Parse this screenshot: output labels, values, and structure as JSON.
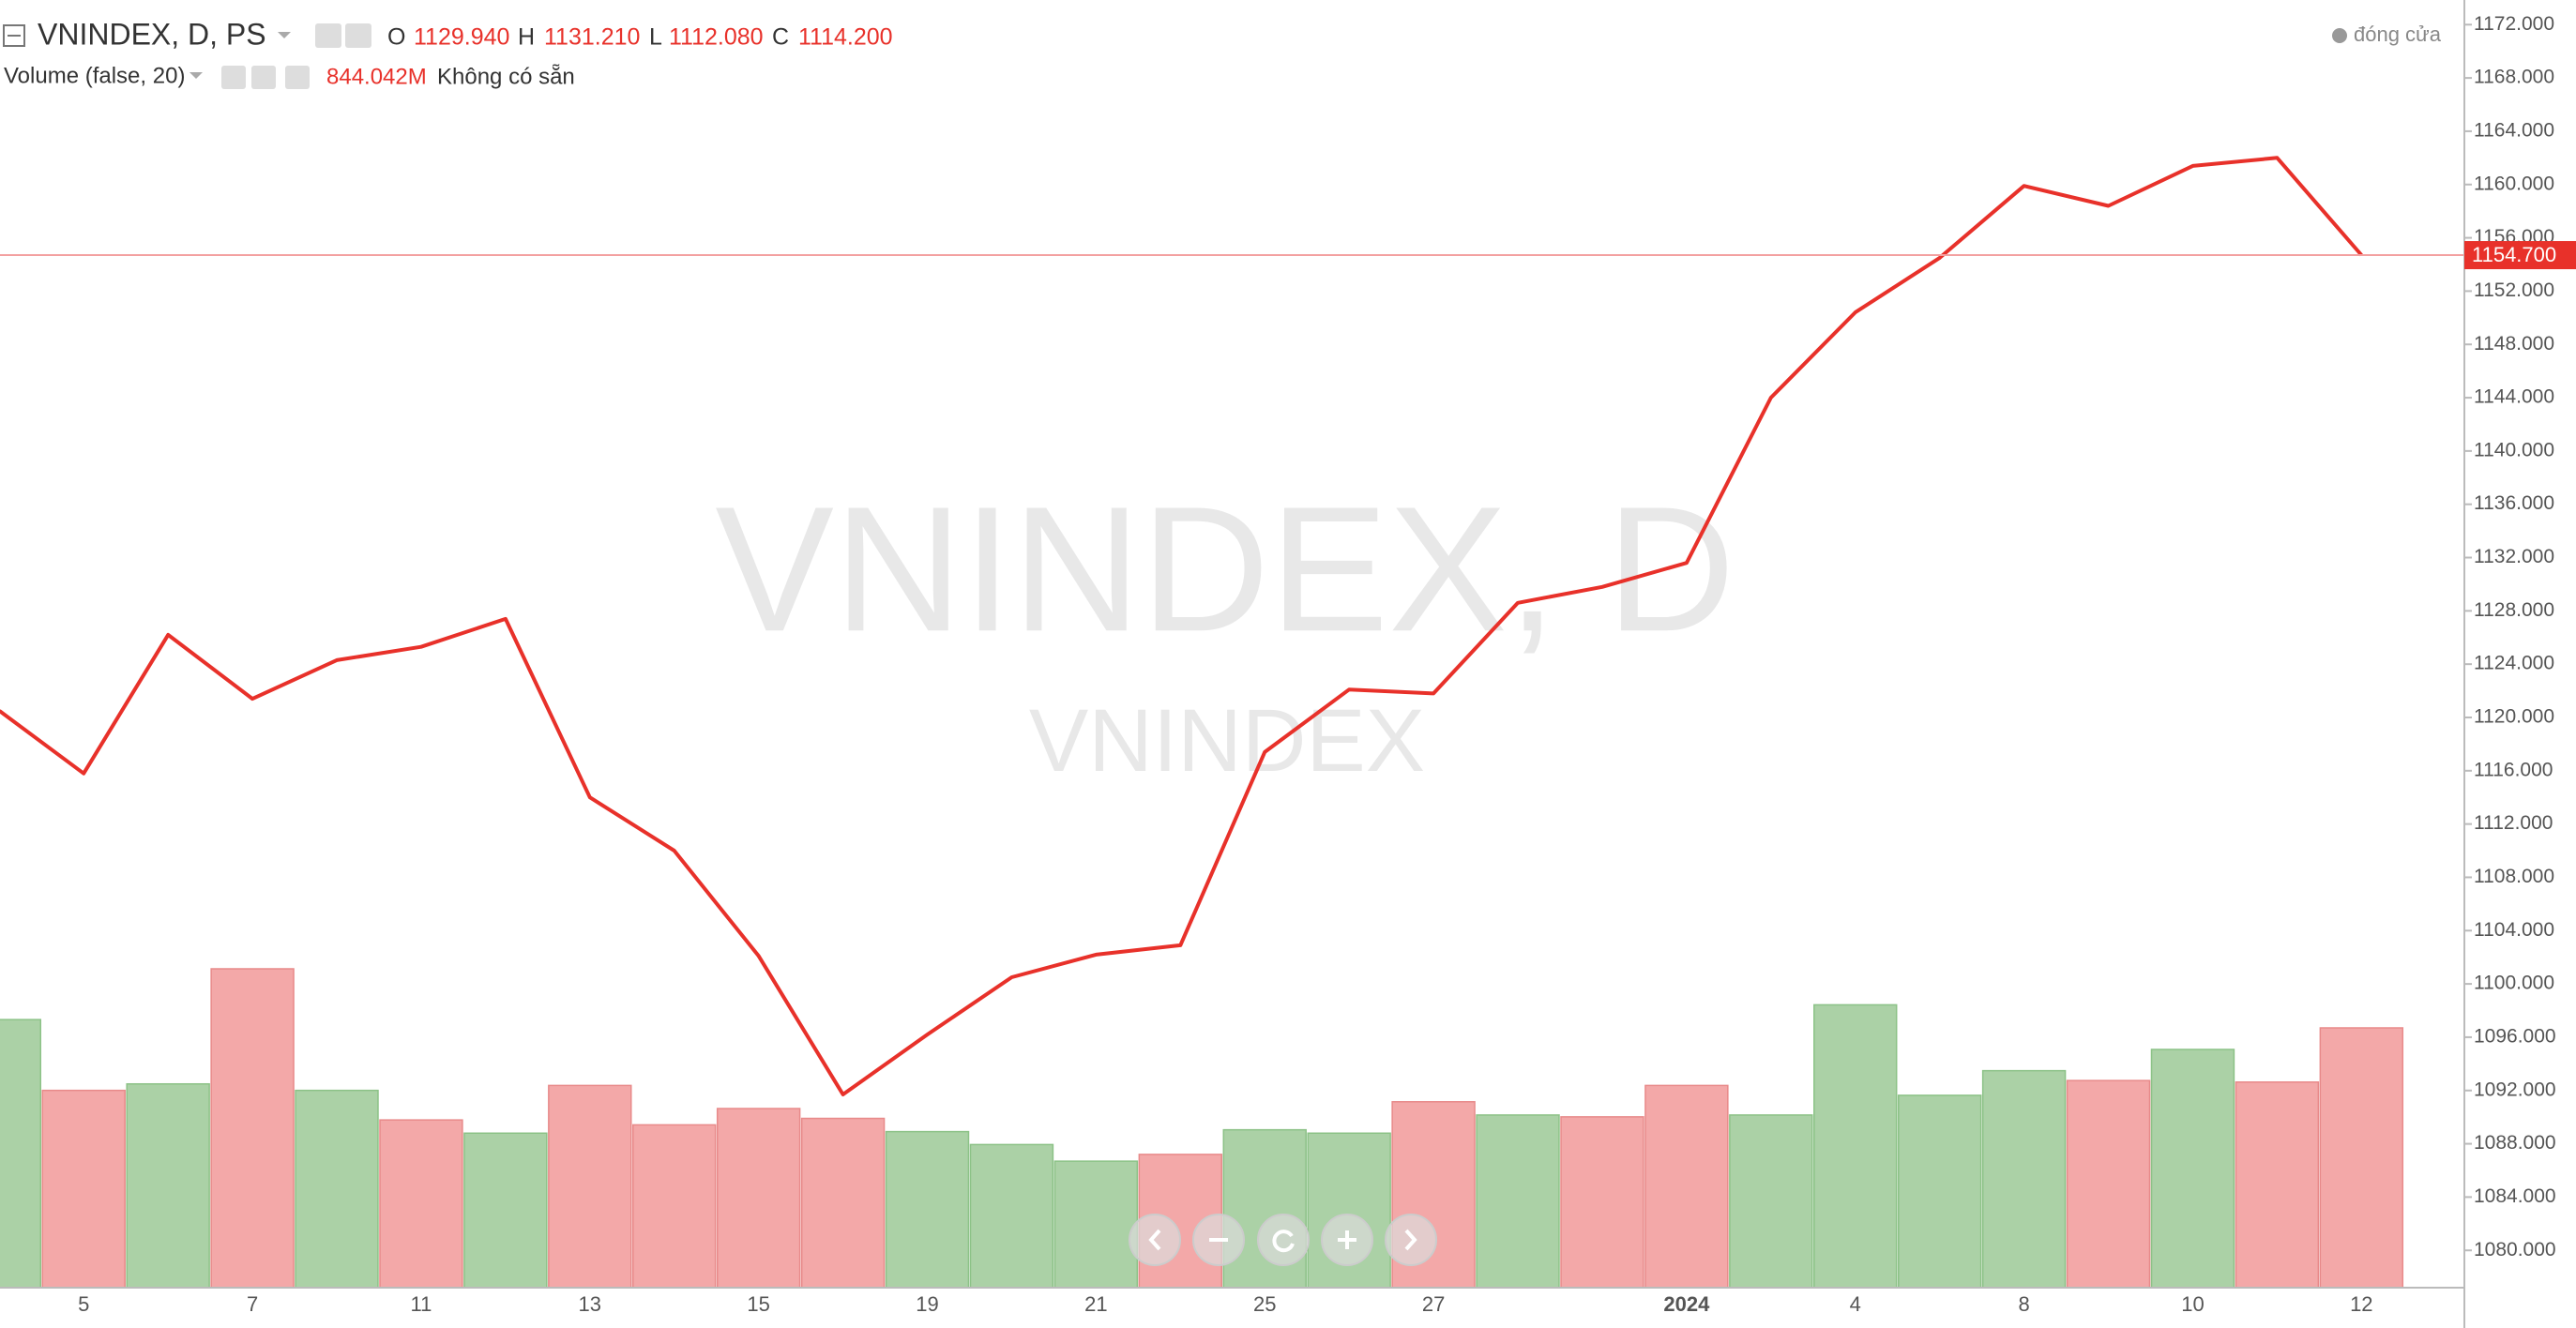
{
  "chart_data": {
    "type": "line",
    "title": "VNINDEX, D, PS",
    "watermark": "VNINDEX, D",
    "watermark_sub": "VNINDEX",
    "ohlc": [
      {
        "name": "O",
        "value": {
          "value": 1129.94,
          "label": "1129.940"
        }
      },
      {
        "name": "H",
        "value": {
          "value": 1131.21,
          "label": "1131.210"
        }
      },
      {
        "name": "L",
        "value": {
          "value": 1112.08,
          "label": "1112.080"
        }
      },
      {
        "name": "C",
        "value": {
          "value": 1114.2,
          "label": "1114.200"
        }
      }
    ],
    "volume_title": "Volume (false, 20)",
    "volume_last": {
      "value": 844.042,
      "label": "844.042M"
    },
    "volume_note": "Không có sẵn",
    "status": "đóng cửa",
    "categories": [
      null,
      "5",
      null,
      "7",
      null,
      "11",
      null,
      "13",
      null,
      "15",
      null,
      "19",
      null,
      "21",
      null,
      "25",
      null,
      "27",
      null,
      null,
      "2024",
      null,
      "4",
      null,
      "8",
      null,
      "10",
      null,
      "12"
    ],
    "series": [
      {
        "name": "VNINDEX",
        "color": "#e8312a",
        "values": [
          1120.5,
          1115.8,
          1126.2,
          1121.4,
          1124.3,
          1125.3,
          1127.4,
          1114.0,
          1110.0,
          1102.1,
          1091.7,
          1096.2,
          1100.5,
          1102.2,
          1102.9,
          1117.4,
          1122.1,
          1121.8,
          1128.6,
          1129.8,
          1131.6,
          1144.0,
          1150.4,
          1154.5,
          1159.9,
          1158.4,
          1161.4,
          1162.0,
          1154.7
        ]
      },
      {
        "name": "Volume",
        "type": "bar",
        "values": [
          871,
          641,
          662,
          1036,
          641,
          545,
          502,
          657,
          529,
          582,
          550,
          507,
          465,
          411,
          433,
          513,
          502,
          604,
          561,
          555,
          657,
          561,
          919,
          625,
          705,
          673,
          774,
          668,
          844.042
        ],
        "colors": [
          "#abd1a6",
          "#f3a8a8",
          "#abd1a6",
          "#f3a8a8",
          "#abd1a6",
          "#f3a8a8",
          "#abd1a6",
          "#f3a8a8",
          "#f3a8a8",
          "#f3a8a8",
          "#f3a8a8",
          "#abd1a6",
          "#abd1a6",
          "#abd1a6",
          "#f3a8a8",
          "#abd1a6",
          "#abd1a6",
          "#f3a8a8",
          "#abd1a6",
          "#f3a8a8",
          "#f3a8a8",
          "#abd1a6",
          "#abd1a6",
          "#abd1a6",
          "#abd1a6",
          "#f3a8a8",
          "#abd1a6",
          "#f3a8a8",
          "#f3a8a8"
        ]
      }
    ],
    "last_price": {
      "value": 1154.7,
      "label": "1154.700"
    },
    "ylim": [
      1077.2,
      1173.85
    ],
    "yticks": [
      {
        "value": 1080,
        "label": "1080.000"
      },
      {
        "value": 1084,
        "label": "1084.000"
      },
      {
        "value": 1088,
        "label": "1088.000"
      },
      {
        "value": 1092,
        "label": "1092.000"
      },
      {
        "value": 1096,
        "label": "1096.000"
      },
      {
        "value": 1100,
        "label": "1100.000"
      },
      {
        "value": 1104,
        "label": "1104.000"
      },
      {
        "value": 1108,
        "label": "1108.000"
      },
      {
        "value": 1112,
        "label": "1112.000"
      },
      {
        "value": 1116,
        "label": "1116.000"
      },
      {
        "value": 1120,
        "label": "1120.000"
      },
      {
        "value": 1124,
        "label": "1124.000"
      },
      {
        "value": 1128,
        "label": "1128.000"
      },
      {
        "value": 1132,
        "label": "1132.000"
      },
      {
        "value": 1136,
        "label": "1136.000"
      },
      {
        "value": 1140,
        "label": "1140.000"
      },
      {
        "value": 1144,
        "label": "1144.000"
      },
      {
        "value": 1148,
        "label": "1148.000"
      },
      {
        "value": 1152,
        "label": "1152.000"
      },
      {
        "value": 1156,
        "label": "1156.000"
      },
      {
        "value": 1160,
        "label": "1160.000"
      },
      {
        "value": 1164,
        "label": "1164.000"
      },
      {
        "value": 1168,
        "label": "1168.000"
      },
      {
        "value": 1172,
        "label": "1172.000"
      }
    ],
    "grid": false
  }
}
